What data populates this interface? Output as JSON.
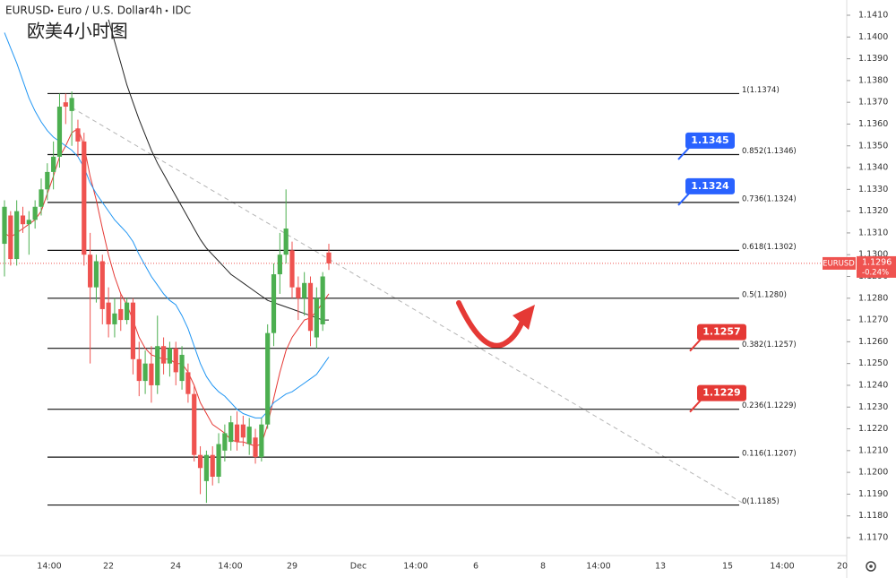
{
  "chart_data": {
    "type": "candlestick",
    "header": {
      "symbol": "EURUSD",
      "name": "Euro / U.S. Dollar",
      "interval": "4h",
      "source": "IDC"
    },
    "title": "欧美4小时图",
    "up_color": "#4caf50",
    "down_color": "#ef5350",
    "candles": {
      "open": [
        1.1305,
        1.1318,
        1.1298,
        1.1318,
        1.1314,
        1.1316,
        1.1322,
        1.133,
        1.1338,
        1.1345,
        1.137,
        1.1366,
        1.1358,
        1.1352,
        1.13,
        1.1285,
        1.1297,
        1.1278,
        1.1268,
        1.1275,
        1.127,
        1.1278,
        1.1252,
        1.1242,
        1.125,
        1.124,
        1.1258,
        1.125,
        1.1257,
        1.1242,
        1.1246,
        1.1236,
        1.1208,
        1.1196,
        1.1208,
        1.1198,
        1.121,
        1.1214,
        1.1222,
        1.1222,
        1.1213,
        1.1216,
        1.1207,
        1.1222,
        1.1264,
        1.1291,
        1.13,
        1.1302,
        1.1285,
        1.128,
        1.1287,
        1.1262,
        1.1268,
        1.1301
      ],
      "high": [
        1.1325,
        1.132,
        1.1325,
        1.1322,
        1.132,
        1.1325,
        1.1335,
        1.1342,
        1.1352,
        1.1374,
        1.1374,
        1.1375,
        1.1362,
        1.1356,
        1.131,
        1.13,
        1.13,
        1.1285,
        1.128,
        1.1282,
        1.128,
        1.128,
        1.126,
        1.1256,
        1.1258,
        1.1272,
        1.1262,
        1.126,
        1.126,
        1.1258,
        1.125,
        1.124,
        1.1212,
        1.121,
        1.1212,
        1.1218,
        1.1222,
        1.1226,
        1.1228,
        1.1226,
        1.1225,
        1.122,
        1.1225,
        1.1268,
        1.1296,
        1.131,
        1.133,
        1.1306,
        1.129,
        1.1292,
        1.129,
        1.1285,
        1.1292,
        1.1305
      ],
      "low": [
        1.129,
        1.1295,
        1.1295,
        1.131,
        1.13,
        1.1312,
        1.1318,
        1.1325,
        1.133,
        1.134,
        1.136,
        1.135,
        1.1345,
        1.1295,
        1.125,
        1.1278,
        1.1268,
        1.1262,
        1.1262,
        1.1265,
        1.1268,
        1.1245,
        1.1235,
        1.1236,
        1.1232,
        1.1236,
        1.1245,
        1.1244,
        1.124,
        1.1238,
        1.1232,
        1.1205,
        1.119,
        1.1186,
        1.1194,
        1.1195,
        1.1205,
        1.121,
        1.121,
        1.1212,
        1.1208,
        1.1204,
        1.1205,
        1.122,
        1.1258,
        1.1282,
        1.1296,
        1.128,
        1.127,
        1.1272,
        1.1258,
        1.1257,
        1.1265,
        1.1293
      ],
      "close": [
        1.1322,
        1.1298,
        1.132,
        1.1314,
        1.1316,
        1.1322,
        1.133,
        1.1338,
        1.1345,
        1.1368,
        1.1368,
        1.1372,
        1.1352,
        1.13,
        1.1285,
        1.1297,
        1.1275,
        1.1268,
        1.1273,
        1.127,
        1.1278,
        1.1252,
        1.1242,
        1.125,
        1.124,
        1.1258,
        1.125,
        1.1257,
        1.1246,
        1.1254,
        1.1236,
        1.1208,
        1.1202,
        1.1208,
        1.1198,
        1.1213,
        1.1218,
        1.1223,
        1.1214,
        1.1216,
        1.1221,
        1.1207,
        1.1222,
        1.1264,
        1.1291,
        1.13,
        1.1312,
        1.1285,
        1.128,
        1.1287,
        1.1265,
        1.128,
        1.129,
        1.1296
      ]
    },
    "series": [
      {
        "color": "#e53935",
        "values": [
          1.131,
          1.1308,
          1.131,
          1.1312,
          1.1314,
          1.1316,
          1.132,
          1.1328,
          1.1336,
          1.1345,
          1.135,
          1.1356,
          1.1358,
          1.135,
          1.1336,
          1.1325,
          1.1312,
          1.13,
          1.129,
          1.1282,
          1.1277,
          1.127,
          1.1262,
          1.1257,
          1.1254,
          1.1253,
          1.1252,
          1.1252,
          1.125,
          1.125,
          1.1246,
          1.124,
          1.1232,
          1.1227,
          1.1222,
          1.122,
          1.1218,
          1.1215,
          1.1214,
          1.1214,
          1.1213,
          1.1212,
          1.1213,
          1.1222,
          1.1234,
          1.1246,
          1.1256,
          1.1262,
          1.1266,
          1.127,
          1.1271,
          1.1274,
          1.1278,
          1.1282
        ]
      },
      {
        "color": "#2196f3",
        "values": [
          1.1402,
          1.1395,
          1.1388,
          1.138,
          1.1372,
          1.1366,
          1.1361,
          1.1357,
          1.1354,
          1.1352,
          1.135,
          1.1348,
          1.1345,
          1.134,
          1.1333,
          1.1328,
          1.1324,
          1.132,
          1.1316,
          1.1313,
          1.131,
          1.1306,
          1.13,
          1.1295,
          1.129,
          1.1286,
          1.1282,
          1.1279,
          1.1277,
          1.1272,
          1.1266,
          1.1258,
          1.125,
          1.1244,
          1.124,
          1.1237,
          1.1235,
          1.1232,
          1.1229,
          1.1227,
          1.1226,
          1.1225,
          1.1225,
          1.1228,
          1.1232,
          1.1234,
          1.1236,
          1.1237,
          1.1239,
          1.1241,
          1.1243,
          1.1245,
          1.1249,
          1.1253
        ]
      },
      {
        "color": "#222222",
        "values": [
          null,
          null,
          null,
          null,
          null,
          null,
          null,
          null,
          null,
          null,
          null,
          null,
          null,
          null,
          null,
          null,
          null,
          1.1408,
          1.1398,
          1.1388,
          1.1378,
          1.137,
          1.1362,
          1.1355,
          1.1348,
          1.1342,
          1.1337,
          1.1332,
          1.1327,
          1.1322,
          1.1317,
          1.1312,
          1.1307,
          1.1303,
          1.13,
          1.1297,
          1.1294,
          1.1291,
          1.1289,
          1.1287,
          1.1285,
          1.1283,
          1.1281,
          1.1279,
          1.1278,
          1.1277,
          1.1276,
          1.1275,
          1.1274,
          1.1273,
          1.1272,
          1.1271,
          1.127,
          1.127
        ]
      }
    ],
    "fib_levels": [
      {
        "label": "1(1.1374)",
        "value": 1.1374
      },
      {
        "label": "0.852(1.1346)",
        "value": 1.1346
      },
      {
        "label": "0.736(1.1324)",
        "value": 1.1324
      },
      {
        "label": "0.618(1.1302)",
        "value": 1.1302
      },
      {
        "label": "0.5(1.1280)",
        "value": 1.128
      },
      {
        "label": "0.382(1.1257)",
        "value": 1.1257
      },
      {
        "label": "0.236(1.1229)",
        "value": 1.1229
      },
      {
        "label": "0.116(1.1207)",
        "value": 1.1207
      },
      {
        "label": "0(1.1185)",
        "value": 1.1185
      }
    ],
    "price_badges": [
      {
        "value": 1.1345,
        "color": "#2962ff"
      },
      {
        "value": 1.1324,
        "color": "#2962ff"
      },
      {
        "value": 1.1257,
        "color": "#e53935"
      },
      {
        "value": 1.1229,
        "color": "#e53935"
      }
    ],
    "last_price": {
      "symbol": "EURUSD",
      "value": 1.1296,
      "change": "-0.24%",
      "color": "#ef5350"
    },
    "ylim": [
      1.117,
      1.141
    ],
    "yticks": [
      {
        "value": 1.117,
        "label": "1.1170"
      },
      {
        "value": 1.118,
        "label": "1.1180"
      },
      {
        "value": 1.119,
        "label": "1.1190"
      },
      {
        "value": 1.12,
        "label": "1.1200"
      },
      {
        "value": 1.121,
        "label": "1.1210"
      },
      {
        "value": 1.122,
        "label": "1.1220"
      },
      {
        "value": 1.123,
        "label": "1.1230"
      },
      {
        "value": 1.124,
        "label": "1.1240"
      },
      {
        "value": 1.125,
        "label": "1.1250"
      },
      {
        "value": 1.126,
        "label": "1.1260"
      },
      {
        "value": 1.127,
        "label": "1.1270"
      },
      {
        "value": 1.128,
        "label": "1.1280"
      },
      {
        "value": 1.129,
        "label": "1.1290"
      },
      {
        "value": 1.13,
        "label": "1.1300"
      },
      {
        "value": 1.131,
        "label": "1.1310"
      },
      {
        "value": 1.132,
        "label": "1.1320"
      },
      {
        "value": 1.133,
        "label": "1.1330"
      },
      {
        "value": 1.134,
        "label": "1.1340"
      },
      {
        "value": 1.135,
        "label": "1.1350"
      },
      {
        "value": 1.136,
        "label": "1.1360"
      },
      {
        "value": 1.137,
        "label": "1.1370"
      },
      {
        "value": 1.138,
        "label": "1.1380"
      },
      {
        "value": 1.139,
        "label": "1.1390"
      },
      {
        "value": 1.14,
        "label": "1.1400"
      },
      {
        "value": 1.141,
        "label": "1.1410"
      }
    ],
    "x_labels": [
      "14:00",
      "22",
      "24",
      "14:00",
      "29",
      "Dec",
      "14:00",
      "6",
      "8",
      "14:00",
      "13",
      "15",
      "14:00",
      "20"
    ]
  }
}
